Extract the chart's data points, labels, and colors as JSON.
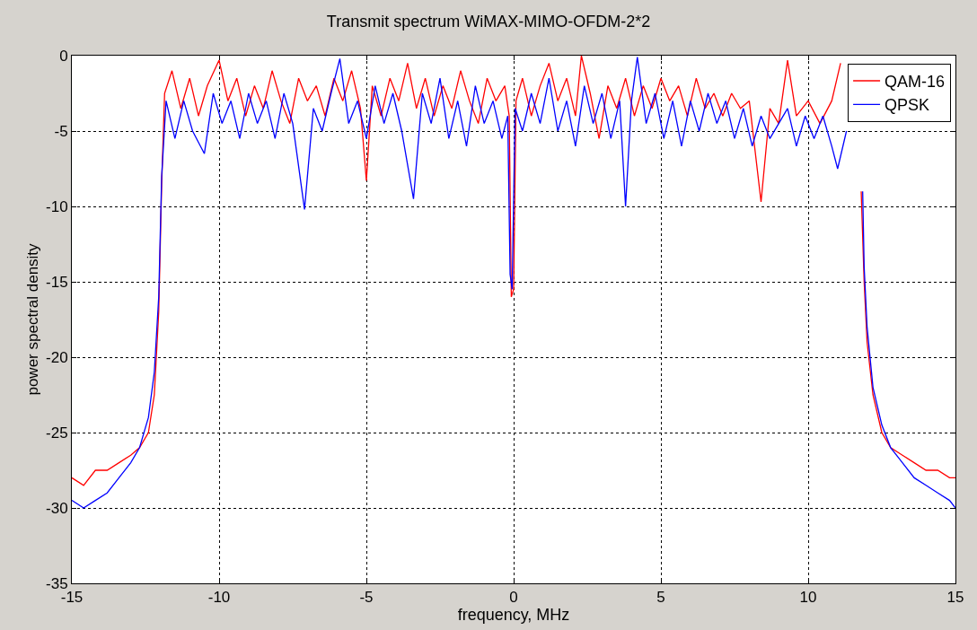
{
  "chart_data": {
    "type": "line",
    "title": "Transmit spectrum WiMAX-MIMO-OFDM-2*2",
    "xlabel": "frequency, MHz",
    "ylabel": "power spectral density",
    "xlim": [
      -15,
      15
    ],
    "xticks": [
      -15,
      -10,
      -5,
      0,
      5,
      10,
      15
    ],
    "ylim": [
      -35,
      0
    ],
    "yticks": [
      -35,
      -30,
      -25,
      -20,
      -15,
      -10,
      -5,
      0
    ],
    "grid": true,
    "legend": "top right",
    "line_style": "solid",
    "marker": "none",
    "series": [
      {
        "name": "QAM-16",
        "color": "#ff0000",
        "x": [
          -15,
          -14.6,
          -14.2,
          -13.8,
          -13.4,
          -13.0,
          -12.7,
          -12.4,
          -12.2,
          -12.05,
          -11.95,
          -11.85,
          -11.6,
          -11.3,
          -11.0,
          -10.7,
          -10.4,
          -10.0,
          -9.7,
          -9.4,
          -9.1,
          -8.8,
          -8.5,
          -8.2,
          -7.9,
          -7.6,
          -7.3,
          -7.0,
          -6.7,
          -6.4,
          -6.1,
          -5.8,
          -5.5,
          -5.2,
          -5.0,
          -4.8,
          -4.5,
          -4.2,
          -3.9,
          -3.6,
          -3.3,
          -3.0,
          -2.7,
          -2.4,
          -2.1,
          -1.8,
          -1.5,
          -1.2,
          -0.9,
          -0.6,
          -0.3,
          -0.15,
          -0.08,
          0.0,
          0.08,
          0.3,
          0.6,
          0.9,
          1.2,
          1.5,
          1.8,
          2.1,
          2.3,
          2.6,
          2.9,
          3.2,
          3.5,
          3.8,
          4.1,
          4.4,
          4.7,
          5.0,
          5.3,
          5.6,
          5.9,
          6.2,
          6.5,
          6.8,
          7.1,
          7.4,
          7.7,
          8.0,
          8.4,
          8.7,
          9.0,
          9.3,
          9.6,
          10.0,
          10.4,
          10.8,
          11.1,
          11.4,
          11.7,
          11.8,
          11.9,
          12.0,
          12.2,
          12.5,
          12.8,
          13.2,
          13.6,
          14.0,
          14.4,
          14.8,
          15
        ],
        "values": [
          -28,
          -28.5,
          -27.5,
          -27.5,
          -27,
          -26.5,
          -26,
          -25,
          -22.5,
          -17,
          -8.5,
          -2.5,
          -1,
          -3.5,
          -1.5,
          -4,
          -2,
          -0.3,
          -3,
          -1.5,
          -4,
          -2,
          -3.5,
          -1,
          -3,
          -4.5,
          -1.5,
          -3,
          -2,
          -4,
          -1.5,
          -3,
          -1,
          -3.5,
          -8.3,
          -2,
          -4,
          -1.5,
          -3,
          -0.5,
          -3.5,
          -1.5,
          -4,
          -2,
          -3.5,
          -1,
          -3,
          -4.5,
          -1.5,
          -3,
          -2,
          -4,
          -16,
          -15.5,
          -3,
          -1.5,
          -4,
          -2,
          -0.5,
          -3,
          -1.5,
          -4,
          0,
          -2.5,
          -5.5,
          -2,
          -3.5,
          -1.5,
          -4,
          -2,
          -3.5,
          -1.5,
          -3,
          -2,
          -4,
          -1.5,
          -3.5,
          -2.5,
          -4,
          -2.5,
          -3.5,
          -3,
          -9.7,
          -3.5,
          -4.5,
          -0.3,
          -4,
          -3,
          -4.5,
          -3,
          -0.5,
          null,
          null,
          -9,
          -15,
          -19,
          -22.5,
          -25,
          -26,
          -26.5,
          -27,
          -27.5,
          -27.5,
          -28,
          -28
        ]
      },
      {
        "name": "QPSK",
        "color": "#0000ff",
        "x": [
          -15,
          -14.6,
          -14.2,
          -13.8,
          -13.4,
          -13.0,
          -12.7,
          -12.4,
          -12.2,
          -12.05,
          -11.95,
          -11.8,
          -11.5,
          -11.2,
          -10.9,
          -10.5,
          -10.2,
          -9.9,
          -9.6,
          -9.3,
          -9.0,
          -8.7,
          -8.4,
          -8.1,
          -7.8,
          -7.5,
          -7.1,
          -6.8,
          -6.5,
          -6.2,
          -5.9,
          -5.6,
          -5.3,
          -5.0,
          -4.7,
          -4.4,
          -4.1,
          -3.8,
          -3.4,
          -3.1,
          -2.8,
          -2.5,
          -2.2,
          -1.9,
          -1.6,
          -1.3,
          -1.0,
          -0.7,
          -0.4,
          -0.2,
          -0.12,
          -0.05,
          0.05,
          0.3,
          0.6,
          0.9,
          1.2,
          1.5,
          1.8,
          2.1,
          2.4,
          2.7,
          3.0,
          3.3,
          3.6,
          3.8,
          4.0,
          4.2,
          4.5,
          4.8,
          5.1,
          5.4,
          5.7,
          6.0,
          6.3,
          6.6,
          6.9,
          7.2,
          7.5,
          7.8,
          8.1,
          8.4,
          8.7,
          9.0,
          9.3,
          9.6,
          9.9,
          10.2,
          10.5,
          10.8,
          11.0,
          11.3,
          11.6,
          11.8,
          11.85,
          11.9,
          12.0,
          12.2,
          12.5,
          12.8,
          13.2,
          13.6,
          14.0,
          14.4,
          14.8,
          15
        ],
        "values": [
          -29.5,
          -30,
          -29.5,
          -29,
          -28,
          -27,
          -26,
          -24,
          -21,
          -16,
          -8,
          -3,
          -5.5,
          -3,
          -5,
          -6.5,
          -2.5,
          -4.5,
          -3,
          -5.5,
          -2.5,
          -4.5,
          -3,
          -5.5,
          -2.5,
          -4.5,
          -10.2,
          -3.5,
          -5,
          -2.5,
          -0.2,
          -4.5,
          -3,
          -5.5,
          -2,
          -4.5,
          -2.5,
          -5,
          -9.5,
          -2.5,
          -4.5,
          -1.5,
          -5.5,
          -3,
          -6,
          -2,
          -4.5,
          -3,
          -5.5,
          -4,
          -14.5,
          -15.5,
          -3.5,
          -5,
          -2.5,
          -4.5,
          -1.5,
          -5,
          -3,
          -6,
          -2,
          -4.5,
          -2.5,
          -5.5,
          -3,
          -10,
          -3,
          -0.1,
          -4.5,
          -2.5,
          -5.5,
          -3,
          -6,
          -3,
          -5,
          -2.5,
          -4.5,
          -3,
          -5.5,
          -3.5,
          -6,
          -4,
          -5.5,
          -4.5,
          -3.5,
          -6,
          -4,
          -5.5,
          -4,
          -6,
          -7.5,
          -5,
          null,
          null,
          -9,
          -14,
          -18,
          -22,
          -24.5,
          -26,
          -27,
          -28,
          -28.5,
          -29,
          -29.5,
          -30
        ]
      }
    ]
  }
}
